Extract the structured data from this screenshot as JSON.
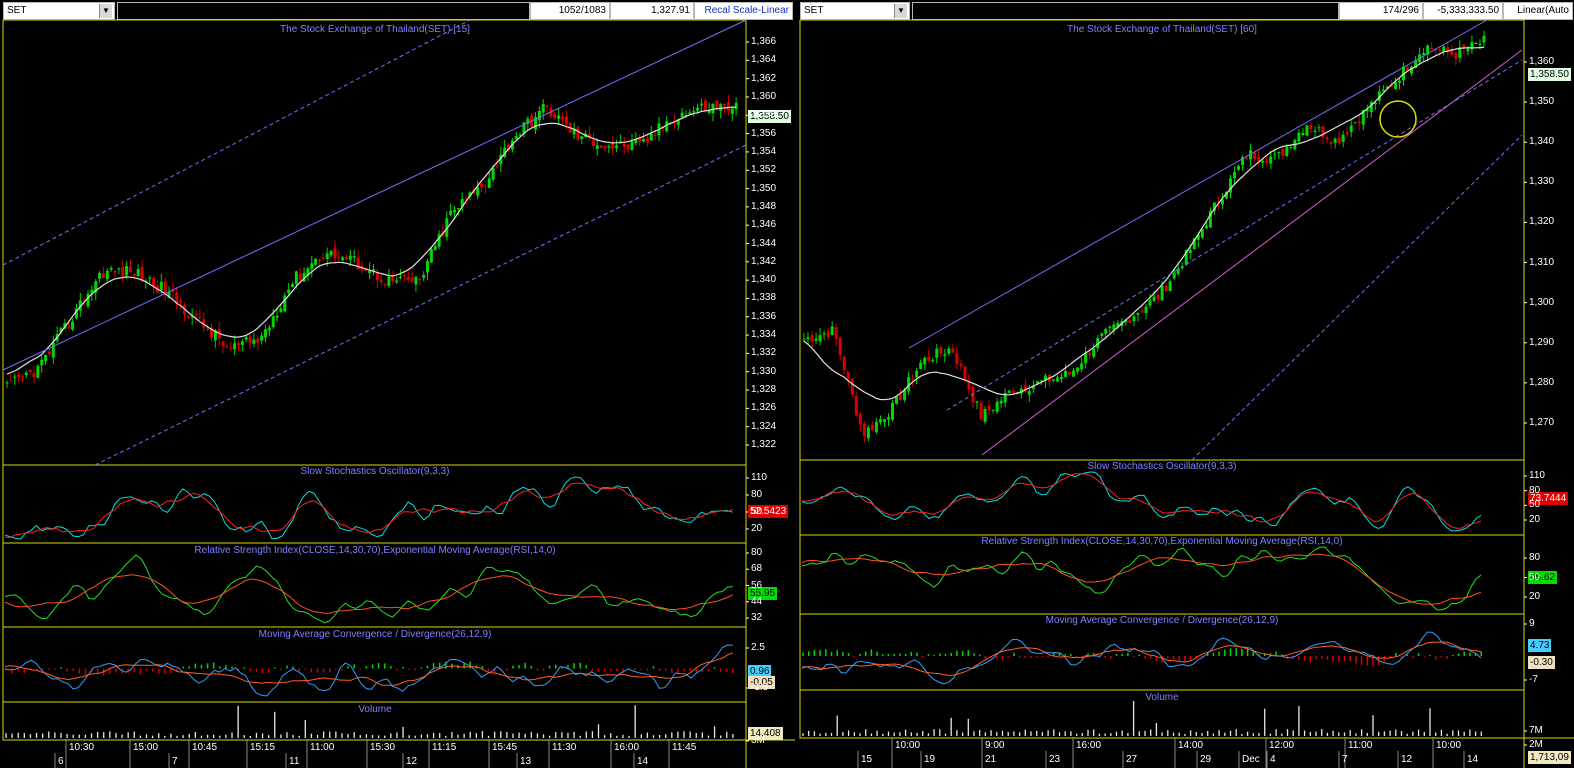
{
  "left": {
    "symbol": "SET",
    "counter": "1052/1083",
    "price_readout": "1,327.91",
    "scale_button": "Recal Scale-Linear",
    "price_title": "The Stock Exchange of Thailand(SET) [15]",
    "price_ticks": [
      "1,366",
      "1,364",
      "1,362",
      "1,360",
      "1,358",
      "1,356",
      "1,354",
      "1,352",
      "1,350",
      "1,348",
      "1,346",
      "1,344",
      "1,342",
      "1,340",
      "1,338",
      "1,336",
      "1,334",
      "1,332",
      "1,330",
      "1,328",
      "1,326",
      "1,324",
      "1,322"
    ],
    "last_price": "1,358.50",
    "stoch_title": "Slow Stochastics Oscillator(9,3,3)",
    "stoch_ticks": [
      "110",
      "80",
      "50",
      "20"
    ],
    "stoch_value": "52.5423",
    "rsi_title": "Relative Strength Index(CLOSE,14,30,70),Exponential Moving Average(RSI,14,0)",
    "rsi_ticks": [
      "80",
      "68",
      "56",
      "44",
      "32"
    ],
    "rsi_value": "55.95",
    "macd_title": "Moving Average Convergence / Divergence(26,12,9)",
    "macd_ticks": [
      "2.5",
      "-1.5"
    ],
    "macd_value": "0.96",
    "macd_signal": "-0.05",
    "vol_title": "Volume",
    "vol_ticks": [
      "3M"
    ],
    "vol_value": "14,408",
    "x_times": [
      "10:30",
      "15:00",
      "10:45",
      "15:15",
      "11:00",
      "15:30",
      "11:15",
      "15:45",
      "11:30",
      "16:00",
      "11:45"
    ],
    "x_days": [
      "6",
      "7",
      "11",
      "12",
      "13",
      "14"
    ]
  },
  "right": {
    "symbol": "SET",
    "counter": "174/296",
    "price_readout": "-5,333,333.50",
    "scale_button": "Linear(Auto",
    "price_title": "The Stock Exchange of Thailand(SET) [60]",
    "price_ticks": [
      "1,360",
      "1,350",
      "1,340",
      "1,330",
      "1,320",
      "1,310",
      "1,300",
      "1,290",
      "1,280",
      "1,270"
    ],
    "last_price": "1,358.50",
    "stoch_title": "Slow Stochastics Oscillator(9,3,3)",
    "stoch_ticks": [
      "110",
      "80",
      "50",
      "20"
    ],
    "stoch_value": "73.7444",
    "rsi_title": "Relative Strength Index(CLOSE,14,30,70),Exponential Moving Average(RSI,14,0)",
    "rsi_ticks": [
      "80",
      "50",
      "20"
    ],
    "rsi_value": "65.62",
    "macd_title": "Moving Average Convergence / Divergence(26,12,9)",
    "macd_ticks": [
      "9",
      "-7"
    ],
    "macd_value": "4.73",
    "macd_signal": "-0.30",
    "vol_title": "Volume",
    "vol_ticks": [
      "7M",
      "2M"
    ],
    "vol_value": "1,713,09",
    "x_times": [
      "10:00",
      "9:00",
      "16:00",
      "14:00",
      "12:00",
      "11:00",
      "10:00"
    ],
    "x_days": [
      "15",
      "19",
      "21",
      "23",
      "27",
      "29",
      "Dec",
      "4",
      "7",
      "12",
      "14"
    ]
  },
  "colors": {
    "background": "#000000",
    "grid": "#d8d800",
    "up": "#00d800",
    "down": "#d80000",
    "ma": "#e0e0e0",
    "channel": "#7070ff",
    "stoch_k": "#00e0e0",
    "stoch_d": "#ff2020",
    "title": "#8080ff"
  },
  "icons": {
    "dropdown": "chevron-down-icon",
    "annotation": "yellow-circle-marker"
  }
}
